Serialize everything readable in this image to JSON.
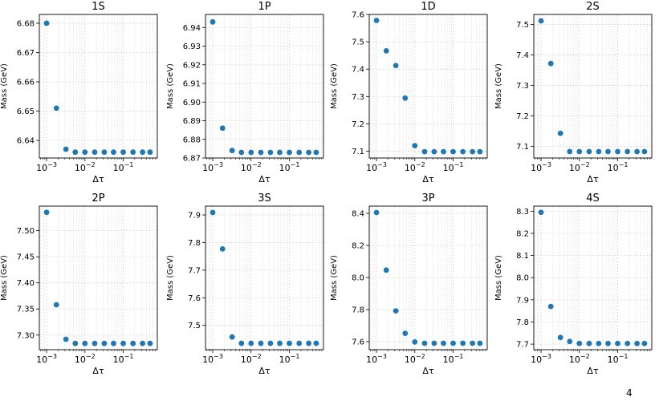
{
  "colors": {
    "marker": "#1f77b4",
    "grid": "#d9d9d9",
    "axis": "#000000"
  },
  "chart_data": [
    {
      "type": "scatter",
      "title": "1S",
      "xlabel": "Δτ",
      "ylabel": "Mass (GeV)",
      "xscale": "log",
      "grid": true,
      "x": [
        0.001,
        0.0018,
        0.0032,
        0.0056,
        0.01,
        0.018,
        0.032,
        0.056,
        0.1,
        0.18,
        0.32,
        0.5
      ],
      "y": [
        6.68,
        6.651,
        6.637,
        6.636,
        6.636,
        6.636,
        6.636,
        6.636,
        6.636,
        6.636,
        6.636,
        6.636
      ],
      "ylim": [
        6.634,
        6.683
      ],
      "yticks": [
        "6.64",
        "6.65",
        "6.66",
        "6.67",
        "6.68"
      ],
      "ytick_values": [
        6.64,
        6.65,
        6.66,
        6.67,
        6.68
      ]
    },
    {
      "type": "scatter",
      "title": "1P",
      "xlabel": "Δτ",
      "ylabel": "Mass (GeV)",
      "xscale": "log",
      "grid": true,
      "x": [
        0.001,
        0.0018,
        0.0032,
        0.0056,
        0.01,
        0.018,
        0.032,
        0.056,
        0.1,
        0.18,
        0.32,
        0.5
      ],
      "y": [
        6.943,
        6.886,
        6.874,
        6.873,
        6.873,
        6.873,
        6.873,
        6.873,
        6.873,
        6.873,
        6.873,
        6.873
      ],
      "ylim": [
        6.87,
        6.947
      ],
      "yticks": [
        "6.87",
        "6.88",
        "6.89",
        "6.90",
        "6.91",
        "6.92",
        "6.93",
        "6.94"
      ],
      "ytick_values": [
        6.87,
        6.88,
        6.89,
        6.9,
        6.91,
        6.92,
        6.93,
        6.94
      ]
    },
    {
      "type": "scatter",
      "title": "1D",
      "xlabel": "Δτ",
      "ylabel": "Mass (GeV)",
      "xscale": "log",
      "grid": true,
      "x": [
        0.001,
        0.0018,
        0.0032,
        0.0056,
        0.01,
        0.018,
        0.032,
        0.056,
        0.1,
        0.18,
        0.32,
        0.5
      ],
      "y": [
        7.578,
        7.467,
        7.413,
        7.294,
        7.12,
        7.098,
        7.098,
        7.098,
        7.098,
        7.098,
        7.098,
        7.098
      ],
      "ylim": [
        7.075,
        7.6
      ],
      "yticks": [
        "7.1",
        "7.2",
        "7.3",
        "7.4",
        "7.5",
        "7.6"
      ],
      "ytick_values": [
        7.1,
        7.2,
        7.3,
        7.4,
        7.5,
        7.6
      ]
    },
    {
      "type": "scatter",
      "title": "2S",
      "xlabel": "Δτ",
      "ylabel": "Mass (GeV)",
      "xscale": "log",
      "grid": true,
      "x": [
        0.001,
        0.0018,
        0.0032,
        0.0056,
        0.01,
        0.018,
        0.032,
        0.056,
        0.1,
        0.18,
        0.32,
        0.5
      ],
      "y": [
        7.512,
        7.372,
        7.143,
        7.083,
        7.083,
        7.083,
        7.083,
        7.083,
        7.083,
        7.083,
        7.083,
        7.083
      ],
      "ylim": [
        7.062,
        7.533
      ],
      "yticks": [
        "7.1",
        "7.2",
        "7.3",
        "7.4",
        "7.5"
      ],
      "ytick_values": [
        7.1,
        7.2,
        7.3,
        7.4,
        7.5
      ]
    },
    {
      "type": "scatter",
      "title": "2P",
      "xlabel": "Δτ",
      "ylabel": "Mass (GeV)",
      "xscale": "log",
      "grid": true,
      "x": [
        0.001,
        0.0018,
        0.0032,
        0.0056,
        0.01,
        0.018,
        0.032,
        0.056,
        0.1,
        0.18,
        0.32,
        0.5
      ],
      "y": [
        7.535,
        7.358,
        7.292,
        7.284,
        7.284,
        7.284,
        7.284,
        7.284,
        7.284,
        7.284,
        7.284,
        7.284
      ],
      "ylim": [
        7.272,
        7.547
      ],
      "yticks": [
        "7.30",
        "7.35",
        "7.40",
        "7.45",
        "7.50"
      ],
      "ytick_values": [
        7.3,
        7.35,
        7.4,
        7.45,
        7.5
      ]
    },
    {
      "type": "scatter",
      "title": "3S",
      "xlabel": "Δτ",
      "ylabel": "Mass (GeV)",
      "xscale": "log",
      "grid": true,
      "x": [
        0.001,
        0.0018,
        0.0032,
        0.0056,
        0.01,
        0.018,
        0.032,
        0.056,
        0.1,
        0.18,
        0.32,
        0.5
      ],
      "y": [
        7.909,
        7.777,
        7.458,
        7.435,
        7.435,
        7.435,
        7.435,
        7.435,
        7.435,
        7.435,
        7.435,
        7.435
      ],
      "ylim": [
        7.412,
        7.932
      ],
      "yticks": [
        "7.5",
        "7.6",
        "7.7",
        "7.8",
        "7.9"
      ],
      "ytick_values": [
        7.5,
        7.6,
        7.7,
        7.8,
        7.9
      ]
    },
    {
      "type": "scatter",
      "title": "3P",
      "xlabel": "Δτ",
      "ylabel": "Mass (GeV)",
      "xscale": "log",
      "grid": true,
      "x": [
        0.001,
        0.0018,
        0.0032,
        0.0056,
        0.01,
        0.018,
        0.032,
        0.056,
        0.1,
        0.18,
        0.32,
        0.5
      ],
      "y": [
        8.405,
        8.046,
        7.792,
        7.652,
        7.598,
        7.59,
        7.59,
        7.59,
        7.59,
        7.59,
        7.59,
        7.59
      ],
      "ylim": [
        7.55,
        8.445
      ],
      "yticks": [
        "7.6",
        "7.8",
        "8.0",
        "8.2",
        "8.4"
      ],
      "ytick_values": [
        7.6,
        7.8,
        8.0,
        8.2,
        8.4
      ]
    },
    {
      "type": "scatter",
      "title": "4S",
      "xlabel": "Δτ",
      "ylabel": "Mass (GeV)",
      "xscale": "log",
      "grid": true,
      "x": [
        0.001,
        0.0018,
        0.0032,
        0.0056,
        0.01,
        0.018,
        0.032,
        0.056,
        0.1,
        0.18,
        0.32,
        0.5
      ],
      "y": [
        8.295,
        7.87,
        7.73,
        7.712,
        7.703,
        7.703,
        7.703,
        7.703,
        7.703,
        7.703,
        7.703,
        7.703
      ],
      "ylim": [
        7.675,
        8.323
      ],
      "yticks": [
        "7.7",
        "7.8",
        "7.9",
        "8.0",
        "8.1",
        "8.2",
        "8.3"
      ],
      "ytick_values": [
        7.7,
        7.8,
        7.9,
        8.0,
        8.1,
        8.2,
        8.3
      ]
    }
  ],
  "xticks": [
    {
      "base": "10",
      "exp": "−3",
      "value": 0.001
    },
    {
      "base": "10",
      "exp": "−2",
      "value": 0.01
    },
    {
      "base": "10",
      "exp": "−1",
      "value": 0.1
    }
  ],
  "xlim_log": [
    -3.19,
    -0.11
  ],
  "footer_mark": "4"
}
